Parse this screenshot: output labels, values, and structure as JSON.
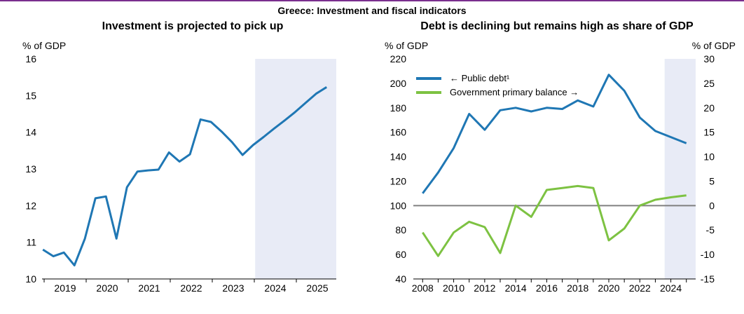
{
  "title": "Greece: Investment and fiscal indicators",
  "colors": {
    "blue": "#1f77b4",
    "green": "#7dc242",
    "projection_shade": "#e8ebf6",
    "zero_line": "#808080"
  },
  "chart_data": [
    {
      "type": "line",
      "title": "Investment is projected to pick up",
      "ylabel": "% of GDP",
      "ylim": [
        10,
        16
      ],
      "yticks": [
        10,
        11,
        12,
        13,
        14,
        15,
        16
      ],
      "xlim": [
        2018.6,
        2025.6
      ],
      "xticks": [
        {
          "label": "2019",
          "x": 2019.15
        },
        {
          "label": "2020",
          "x": 2020.15
        },
        {
          "label": "2021",
          "x": 2021.15
        },
        {
          "label": "2022",
          "x": 2022.15
        },
        {
          "label": "2023",
          "x": 2023.15
        },
        {
          "label": "2024",
          "x": 2024.15
        },
        {
          "label": "2025",
          "x": 2025.15
        }
      ],
      "projection_start": 2023.67,
      "projection_end": 2025.6,
      "series": [
        {
          "color": "#1f77b4",
          "x": [
            2018.62,
            2018.87,
            2019.12,
            2019.37,
            2019.62,
            2019.87,
            2020.12,
            2020.37,
            2020.62,
            2020.87,
            2021.12,
            2021.37,
            2021.62,
            2021.87,
            2022.12,
            2022.37,
            2022.62,
            2022.87,
            2023.12,
            2023.37,
            2023.62,
            2023.87,
            2024.12,
            2024.37,
            2024.62,
            2024.87,
            2025.12,
            2025.37
          ],
          "values": [
            10.8,
            10.62,
            10.72,
            10.37,
            11.1,
            12.2,
            12.25,
            11.1,
            12.5,
            12.93,
            12.96,
            12.98,
            13.45,
            13.2,
            13.4,
            14.35,
            14.28,
            14.02,
            13.73,
            13.38,
            13.65,
            13.87,
            14.1,
            14.32,
            14.55,
            14.8,
            15.05,
            15.23
          ]
        }
      ]
    },
    {
      "type": "line",
      "title": "Debt is declining but remains high as share of GDP",
      "ylabel_left": "% of GDP",
      "ylabel_right": "% of GDP",
      "ylim_left": [
        40,
        220
      ],
      "yticks_left": [
        40,
        60,
        80,
        100,
        120,
        140,
        160,
        180,
        200,
        220
      ],
      "ylim_right": [
        -15,
        30
      ],
      "yticks_right": [
        -15,
        -10,
        -5,
        0,
        5,
        10,
        15,
        20,
        25,
        30
      ],
      "xlim": [
        2007.4,
        2025.6
      ],
      "xticks": [
        "2008",
        "2010",
        "2012",
        "2014",
        "2016",
        "2018",
        "2020",
        "2022",
        "2024"
      ],
      "projection_start": 2023.6,
      "projection_end": 2025.6,
      "legend_position": "top-left",
      "series": [
        {
          "name": "← Public debt¹",
          "axis": "left",
          "color": "#1f77b4",
          "x": [
            2008,
            2009,
            2010,
            2011,
            2012,
            2013,
            2014,
            2015,
            2016,
            2017,
            2018,
            2019,
            2020,
            2021,
            2022,
            2023,
            2024,
            2025
          ],
          "values": [
            110,
            127,
            147,
            175,
            162,
            178,
            180,
            177,
            180,
            179,
            186,
            181,
            207,
            194,
            172,
            161,
            156,
            151
          ]
        },
        {
          "name": "Government primary balance →",
          "axis": "right",
          "color": "#7dc242",
          "x": [
            2008,
            2009,
            2010,
            2011,
            2012,
            2013,
            2014,
            2015,
            2016,
            2017,
            2018,
            2019,
            2020,
            2021,
            2022,
            2023,
            2024,
            2025
          ],
          "values": [
            -5.5,
            -10.3,
            -5.5,
            -3.3,
            -4.4,
            -9.7,
            0,
            -2.3,
            3.2,
            3.6,
            4,
            3.6,
            -7.1,
            -4.7,
            0,
            1.2,
            1.7,
            2.1
          ]
        }
      ]
    }
  ]
}
